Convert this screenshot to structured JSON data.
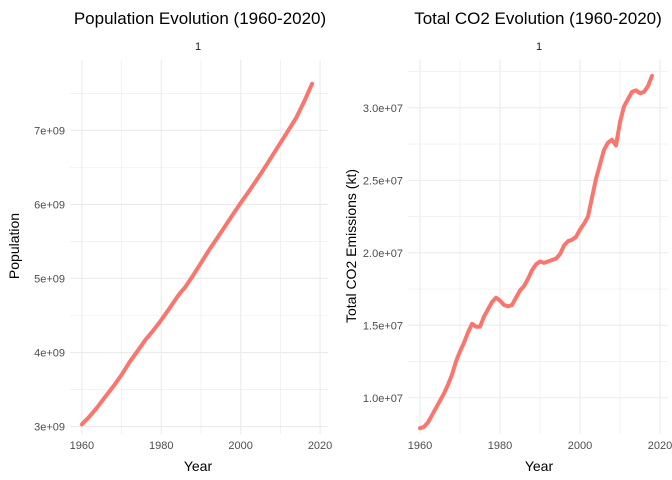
{
  "chart_data": [
    {
      "type": "line",
      "title": "Population Evolution (1960-2020)",
      "facet_label": "1",
      "xlabel": "Year",
      "ylabel": "Population",
      "xlim": [
        1957,
        2022
      ],
      "ylim": [
        2900000000.0,
        7950000000.0
      ],
      "x_ticks": [
        1960,
        1980,
        2000,
        2020
      ],
      "x_tick_labels": [
        "1960",
        "1980",
        "2000",
        "2020"
      ],
      "y_ticks": [
        3000000000.0,
        4000000000.0,
        5000000000.0,
        6000000000.0,
        7000000000.0
      ],
      "y_tick_labels": [
        "3e+09",
        "4e+09",
        "5e+09",
        "6e+09",
        "7e+09"
      ],
      "series": [
        {
          "name": "1",
          "color": "#F8766D",
          "x": [
            1960,
            1962,
            1964,
            1966,
            1968,
            1970,
            1972,
            1974,
            1976,
            1978,
            1980,
            1982,
            1984,
            1985,
            1986,
            1988,
            1990,
            1992,
            1994,
            1996,
            1998,
            2000,
            2002,
            2004,
            2006,
            2008,
            2010,
            2012,
            2014,
            2016,
            2018
          ],
          "values": [
            3030000000.0,
            3140000000.0,
            3270000000.0,
            3410000000.0,
            3550000000.0,
            3700000000.0,
            3870000000.0,
            4020000000.0,
            4170000000.0,
            4300000000.0,
            4440000000.0,
            4590000000.0,
            4750000000.0,
            4820000000.0,
            4880000000.0,
            5040000000.0,
            5210000000.0,
            5380000000.0,
            5540000000.0,
            5700000000.0,
            5860000000.0,
            6020000000.0,
            6170000000.0,
            6330000000.0,
            6490000000.0,
            6660000000.0,
            6830000000.0,
            7000000000.0,
            7170000000.0,
            7390000000.0,
            7630000000.0
          ]
        }
      ]
    },
    {
      "type": "line",
      "title": "Total CO2 Evolution (1960-2020)",
      "facet_label": "1",
      "xlabel": "Year",
      "ylabel": "Total CO2 Emissions (kt)",
      "xlim": [
        1957,
        2022
      ],
      "ylim": [
        7500000.0,
        33300000.0
      ],
      "x_ticks": [
        1960,
        1980,
        2000,
        2020
      ],
      "x_tick_labels": [
        "1960",
        "1980",
        "2000",
        "2020"
      ],
      "y_ticks": [
        10000000.0,
        15000000.0,
        20000000.0,
        25000000.0,
        30000000.0
      ],
      "y_tick_labels": [
        "1.0e+07",
        "1.5e+07",
        "2.0e+07",
        "2.5e+07",
        "3.0e+07"
      ],
      "series": [
        {
          "name": "1",
          "color": "#F8766D",
          "x": [
            1960,
            1961,
            1962,
            1963,
            1964,
            1965,
            1966,
            1967,
            1968,
            1969,
            1970,
            1971,
            1972,
            1973,
            1974,
            1975,
            1976,
            1977,
            1978,
            1979,
            1980,
            1981,
            1982,
            1983,
            1984,
            1985,
            1986,
            1987,
            1988,
            1989,
            1990,
            1991,
            1992,
            1993,
            1994,
            1995,
            1996,
            1997,
            1998,
            1999,
            2000,
            2001,
            2002,
            2003,
            2004,
            2005,
            2006,
            2007,
            2008,
            2009,
            2010,
            2011,
            2012,
            2013,
            2014,
            2015,
            2016,
            2017,
            2018
          ],
          "values": [
            7900000.0,
            8000000.0,
            8300000.0,
            8800000.0,
            9300000.0,
            9800000.0,
            10300000.0,
            10900000.0,
            11600000.0,
            12500000.0,
            13200000.0,
            13800000.0,
            14500000.0,
            15100000.0,
            14900000.0,
            14900000.0,
            15600000.0,
            16100000.0,
            16600000.0,
            16900000.0,
            16700000.0,
            16400000.0,
            16300000.0,
            16400000.0,
            16900000.0,
            17400000.0,
            17700000.0,
            18200000.0,
            18800000.0,
            19200000.0,
            19400000.0,
            19300000.0,
            19400000.0,
            19500000.0,
            19600000.0,
            19900000.0,
            20500000.0,
            20800000.0,
            20900000.0,
            21100000.0,
            21600000.0,
            22000000.0,
            22500000.0,
            23800000.0,
            25100000.0,
            26100000.0,
            27100000.0,
            27600000.0,
            27800000.0,
            27400000.0,
            29000000.0,
            30100000.0,
            30600000.0,
            31100000.0,
            31200000.0,
            31000000.0,
            31100000.0,
            31500000.0,
            32200000.0
          ]
        }
      ]
    }
  ]
}
